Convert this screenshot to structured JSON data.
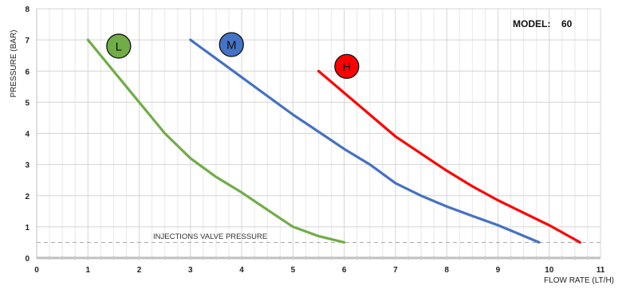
{
  "chart_data": {
    "type": "line",
    "xlabel": "FLOW RATE (LT/H)",
    "ylabel": "PRESSURE (BAR)",
    "xlim": [
      0,
      11
    ],
    "ylim": [
      0,
      8
    ],
    "x_ticks": [
      0,
      1,
      2,
      3,
      4,
      5,
      6,
      7,
      8,
      9,
      10,
      11
    ],
    "y_ticks": [
      0,
      1,
      2,
      3,
      4,
      5,
      6,
      7,
      8
    ],
    "grid": true,
    "grid_step_x": 0.25,
    "model": {
      "label": "MODEL:",
      "value": "60"
    },
    "reference_line": {
      "label": "INJECTIONS VALVE PRESSURE",
      "y": 0.5,
      "color": "#aaaaaa"
    },
    "series": [
      {
        "name": "L",
        "color": "#70ad47",
        "points": [
          [
            1,
            7
          ],
          [
            1.5,
            6
          ],
          [
            2,
            5
          ],
          [
            2.5,
            4
          ],
          [
            3,
            3.2
          ],
          [
            3.5,
            2.6
          ],
          [
            4,
            2.1
          ],
          [
            4.5,
            1.55
          ],
          [
            5,
            1.0
          ],
          [
            5.5,
            0.7
          ],
          [
            6,
            0.5
          ]
        ],
        "badge": {
          "x": 1.6,
          "y": 6.8
        }
      },
      {
        "name": "M",
        "color": "#4472c4",
        "points": [
          [
            3,
            7
          ],
          [
            3.5,
            6.4
          ],
          [
            4,
            5.8
          ],
          [
            4.5,
            5.2
          ],
          [
            5,
            4.6
          ],
          [
            5.5,
            4.05
          ],
          [
            6,
            3.5
          ],
          [
            6.5,
            3.0
          ],
          [
            7,
            2.4
          ],
          [
            7.5,
            2.0
          ],
          [
            8,
            1.65
          ],
          [
            8.5,
            1.35
          ],
          [
            9,
            1.05
          ],
          [
            9.8,
            0.5
          ]
        ],
        "badge": {
          "x": 3.8,
          "y": 6.85
        }
      },
      {
        "name": "H",
        "color": "#ff0000",
        "points": [
          [
            5.5,
            6
          ],
          [
            6,
            5.3
          ],
          [
            6.5,
            4.6
          ],
          [
            7,
            3.9
          ],
          [
            7.5,
            3.35
          ],
          [
            8,
            2.8
          ],
          [
            8.5,
            2.3
          ],
          [
            9,
            1.85
          ],
          [
            9.5,
            1.45
          ],
          [
            10,
            1.05
          ],
          [
            10.6,
            0.5
          ]
        ],
        "badge": {
          "x": 6.05,
          "y": 6.15
        }
      }
    ]
  }
}
